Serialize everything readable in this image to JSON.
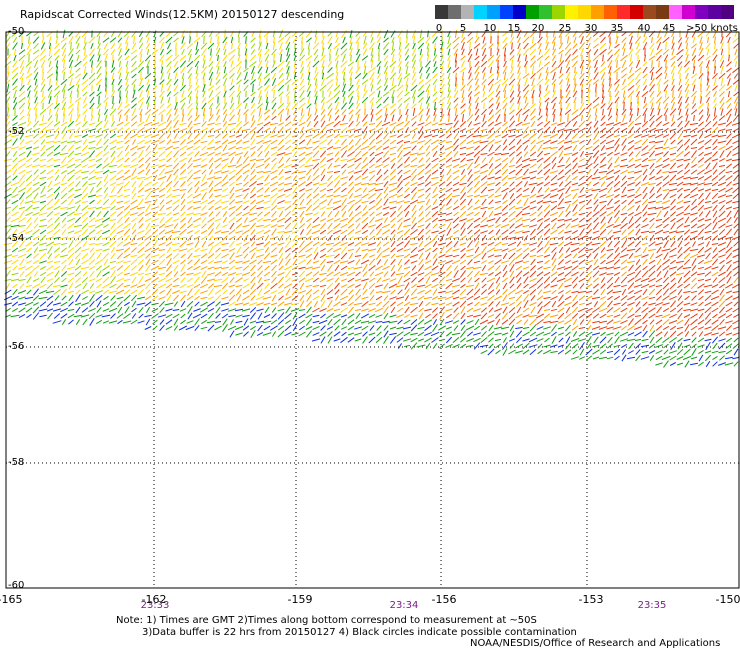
{
  "title": "Rapidscat Corrected Winds(12.5KM) 20150127 descending",
  "legend": {
    "colors": [
      "#383838",
      "#6e6e6e",
      "#b3b3b3",
      "#00d3ff",
      "#00a0ff",
      "#0040ff",
      "#0000c8",
      "#00a000",
      "#30c030",
      "#9cd600",
      "#fff200",
      "#ffd800",
      "#ffa000",
      "#ff6000",
      "#ff2a2a",
      "#d40000",
      "#9a4a1e",
      "#7a3a14",
      "#ff60ff",
      "#d000d0",
      "#8000c0",
      "#5c00a0",
      "#500080"
    ],
    "labels": [
      "0",
      "5",
      "10",
      "15",
      "20",
      "25",
      "30",
      "35",
      "40",
      "45",
      ">50 knots"
    ]
  },
  "lat_labels": [
    "-50",
    "-52",
    "-54",
    "-56",
    "-58",
    "-60"
  ],
  "lon_labels": [
    "-165",
    "-162",
    "-159",
    "-156",
    "-153",
    "-150"
  ],
  "time_labels": [
    "23:33",
    "23:34",
    "23:35"
  ],
  "notes": [
    "Note: 1) Times are GMT 2)Times along bottom correspond to measurement at ~50S",
    "3)Data buffer is 22 hrs from 20150127 4) Black circles indicate possible contamination",
    "NOAA/NESDIS/Office of Research and Applications"
  ]
}
